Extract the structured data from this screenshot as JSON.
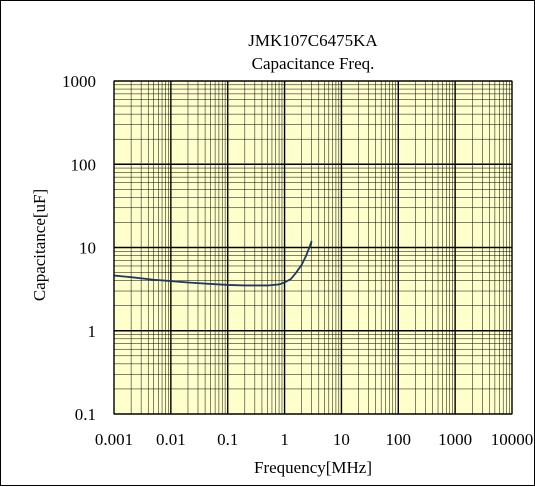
{
  "chart_data": {
    "type": "line",
    "title": "JMK107C6475KA",
    "subtitle": "Capacitance Freq.",
    "xlabel": "Frequency[MHz]",
    "ylabel": "Capacitance[uF]",
    "x_scale": "log",
    "y_scale": "log",
    "xlim": [
      0.001,
      10000
    ],
    "ylim": [
      0.1,
      1000
    ],
    "x_ticks": [
      {
        "value": 0.001,
        "label": "0.001"
      },
      {
        "value": 0.01,
        "label": "0.01"
      },
      {
        "value": 0.1,
        "label": "0.1"
      },
      {
        "value": 1,
        "label": "1"
      },
      {
        "value": 10,
        "label": "10"
      },
      {
        "value": 100,
        "label": "100"
      },
      {
        "value": 1000,
        "label": "1000"
      },
      {
        "value": 10000,
        "label": "10000"
      }
    ],
    "y_ticks": [
      {
        "value": 0.1,
        "label": "0.1"
      },
      {
        "value": 1,
        "label": "1"
      },
      {
        "value": 10,
        "label": "10"
      },
      {
        "value": 100,
        "label": "100"
      },
      {
        "value": 1000,
        "label": "1000"
      }
    ],
    "grid": true,
    "plot_background": "#FFFFCC",
    "grid_color": "#000000",
    "series": [
      {
        "color": "#1F3864",
        "x": [
          0.001,
          0.002,
          0.005,
          0.01,
          0.02,
          0.05,
          0.1,
          0.2,
          0.5,
          0.8,
          1.0,
          1.3,
          1.6,
          2.0,
          2.4,
          2.8,
          3.0
        ],
        "y": [
          4.6,
          4.4,
          4.1,
          3.95,
          3.8,
          3.65,
          3.55,
          3.5,
          3.5,
          3.6,
          3.8,
          4.2,
          5.0,
          6.2,
          8.0,
          10.5,
          12.0
        ]
      }
    ]
  }
}
